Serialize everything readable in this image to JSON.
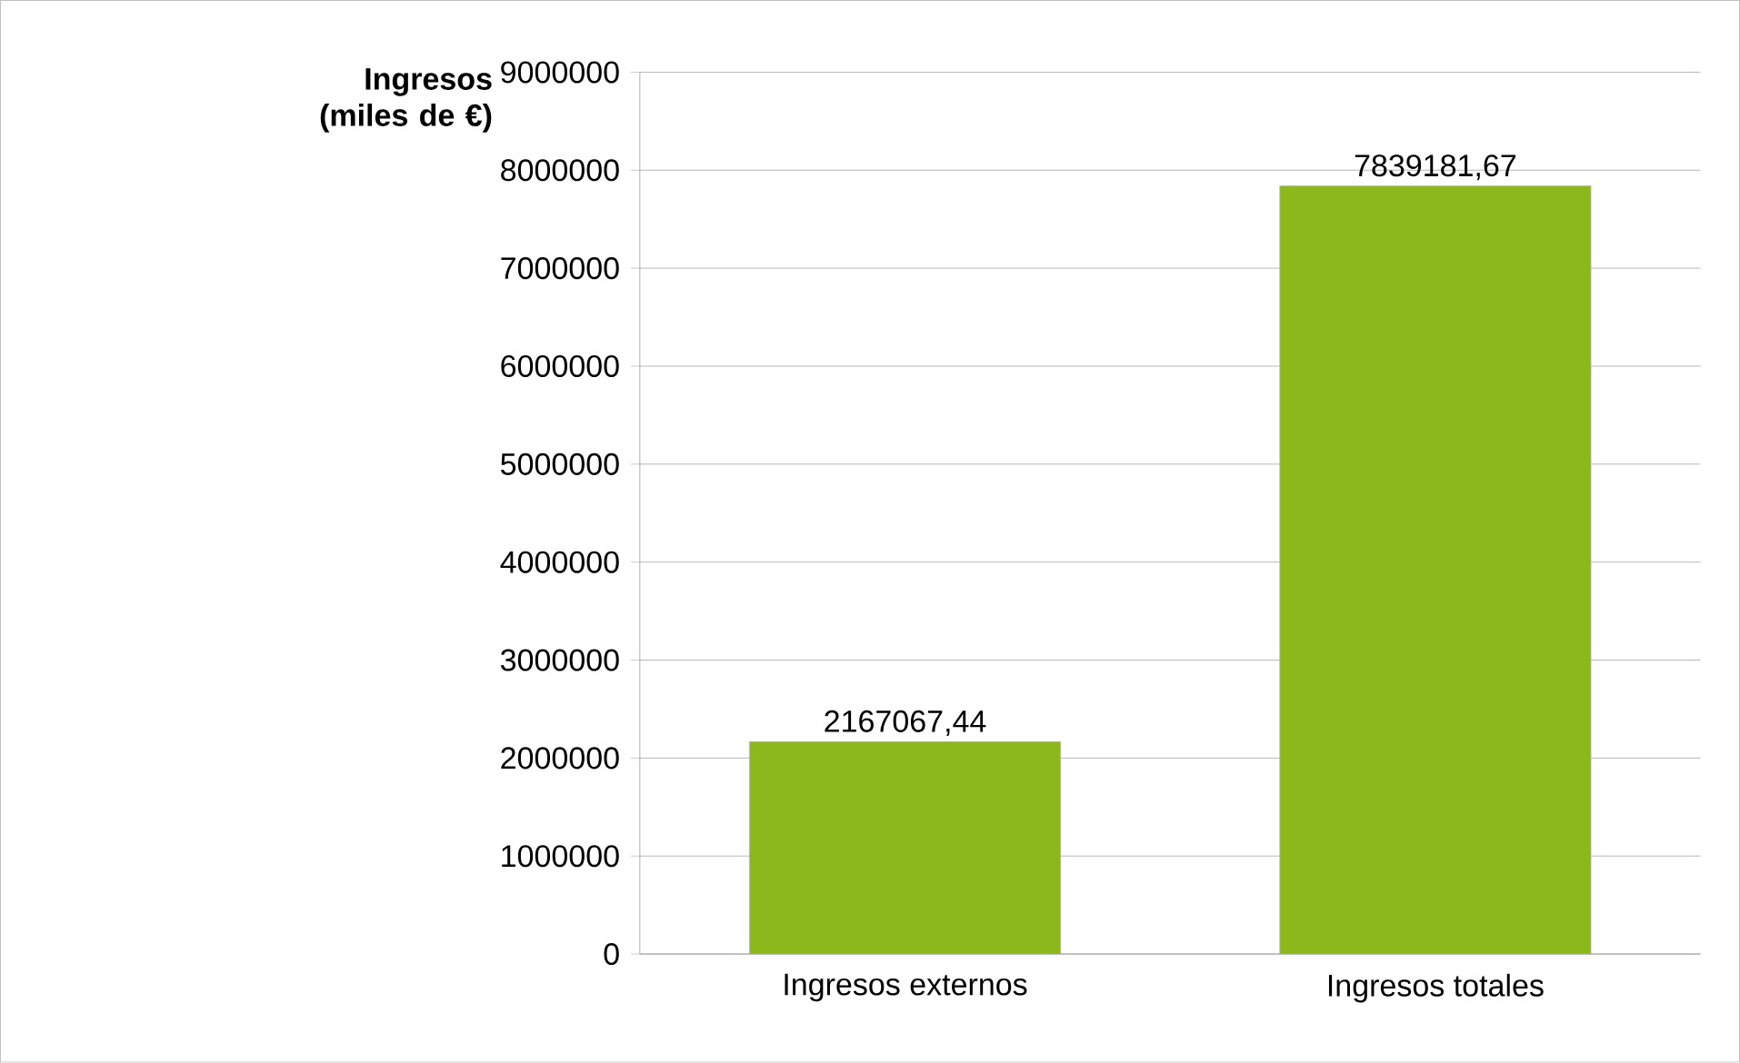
{
  "chart_data": {
    "type": "bar",
    "ylabel": "Ingresos (miles de €)",
    "categories": [
      "Ingresos externos",
      "Ingresos totales"
    ],
    "values": [
      2167067.44,
      7839181.67
    ],
    "value_labels": [
      "2167067,44",
      "7839181,67"
    ],
    "color": "#8cb81c",
    "ylim": [
      0,
      9000000
    ],
    "yticks": [
      0,
      1000000,
      2000000,
      3000000,
      4000000,
      5000000,
      6000000,
      7000000,
      8000000,
      9000000
    ],
    "grid": "y"
  }
}
